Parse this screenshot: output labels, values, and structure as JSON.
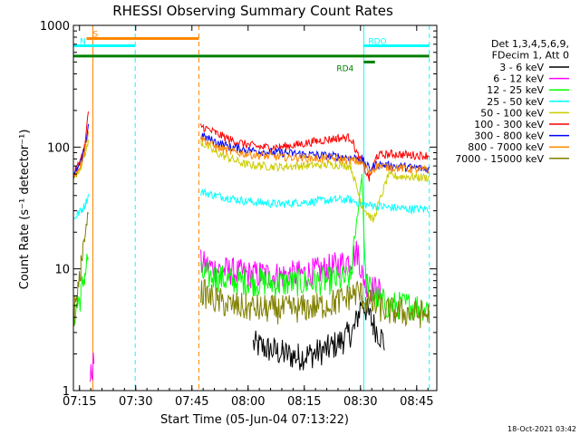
{
  "chart_data": {
    "type": "line",
    "title": "RHESSI Observing Summary Count Rates",
    "xlabel": "Start Time (05-Jun-04 07:13:22)",
    "ylabel": "Count Rate (s⁻¹ detector⁻¹)",
    "x_unit": "minutes after 07:13:22",
    "xlim": [
      0,
      97
    ],
    "ylim": [
      1,
      1000
    ],
    "y_scale": "log",
    "x_ticks": [
      {
        "value": 1.63,
        "label": "07:15"
      },
      {
        "value": 16.63,
        "label": "07:30"
      },
      {
        "value": 31.63,
        "label": "07:45"
      },
      {
        "value": 46.63,
        "label": "08:00"
      },
      {
        "value": 61.63,
        "label": "08:15"
      },
      {
        "value": 76.63,
        "label": "08:30"
      },
      {
        "value": 91.63,
        "label": "08:45"
      }
    ],
    "y_ticks": [
      {
        "value": 1,
        "label": "1"
      },
      {
        "value": 10,
        "label": "10"
      },
      {
        "value": 100,
        "label": "100"
      },
      {
        "value": 1000,
        "label": "1000"
      }
    ],
    "legend_header": [
      "Det 1,3,4,5,6,9,",
      "FDecim 1, Att 0"
    ],
    "legend_position": "right",
    "series": [
      {
        "name": "3 - 6 keV",
        "color": "#000000",
        "points": [
          [
            48,
            2.4
          ],
          [
            52,
            2.2
          ],
          [
            56,
            2.0
          ],
          [
            60,
            1.9
          ],
          [
            64,
            2.0
          ],
          [
            68,
            2.2
          ],
          [
            72,
            2.6
          ],
          [
            75,
            3.2
          ],
          [
            77,
            5.5
          ],
          [
            80,
            3.5
          ],
          [
            83,
            2.5
          ]
        ]
      },
      {
        "name": "6 - 12 keV",
        "color": "#ff00ff",
        "points": [
          [
            4.5,
            1.2
          ],
          [
            5.5,
            1.8
          ],
          [
            34,
            11
          ],
          [
            38,
            10
          ],
          [
            42,
            9.5
          ],
          [
            46,
            9
          ],
          [
            50,
            9
          ],
          [
            55,
            8.8
          ],
          [
            60,
            9
          ],
          [
            65,
            9.5
          ],
          [
            70,
            10.5
          ],
          [
            74,
            12
          ],
          [
            76,
            14
          ],
          [
            77,
            9
          ],
          [
            79,
            7
          ],
          [
            82,
            6.5
          ]
        ]
      },
      {
        "name": "12 - 25 keV",
        "color": "#00ff00",
        "points": [
          [
            0,
            4
          ],
          [
            1,
            5
          ],
          [
            2,
            6
          ],
          [
            3,
            9
          ],
          [
            4,
            13
          ],
          [
            34,
            9
          ],
          [
            38,
            8.5
          ],
          [
            42,
            8
          ],
          [
            48,
            7.8
          ],
          [
            55,
            7.6
          ],
          [
            62,
            7.7
          ],
          [
            68,
            8
          ],
          [
            74,
            8.3
          ],
          [
            77,
            60
          ],
          [
            78,
            8
          ],
          [
            80,
            6
          ],
          [
            84,
            5
          ],
          [
            90,
            5
          ],
          [
            95,
            4.8
          ]
        ]
      },
      {
        "name": "25 - 50 keV",
        "color": "#00ffff",
        "points": [
          [
            0,
            25
          ],
          [
            1,
            28
          ],
          [
            2,
            30
          ],
          [
            3,
            33
          ],
          [
            4,
            40
          ],
          [
            34,
            43
          ],
          [
            38,
            40
          ],
          [
            42,
            38
          ],
          [
            46,
            36
          ],
          [
            50,
            35
          ],
          [
            55,
            34
          ],
          [
            60,
            35
          ],
          [
            65,
            36
          ],
          [
            70,
            37
          ],
          [
            74,
            37
          ],
          [
            77,
            34
          ],
          [
            80,
            33
          ],
          [
            84,
            32
          ],
          [
            90,
            31
          ],
          [
            95,
            31
          ]
        ]
      },
      {
        "name": "50 - 100 keV",
        "color": "#cccc00",
        "points": [
          [
            0,
            55
          ],
          [
            1,
            62
          ],
          [
            2,
            70
          ],
          [
            3,
            85
          ],
          [
            4,
            110
          ],
          [
            34,
            110
          ],
          [
            38,
            90
          ],
          [
            42,
            80
          ],
          [
            46,
            72
          ],
          [
            50,
            70
          ],
          [
            55,
            69
          ],
          [
            60,
            70
          ],
          [
            65,
            71
          ],
          [
            70,
            72
          ],
          [
            74,
            70
          ],
          [
            77,
            33
          ],
          [
            80,
            25
          ],
          [
            84,
            58
          ],
          [
            90,
            57
          ],
          [
            95,
            56
          ]
        ]
      },
      {
        "name": "100 - 300 keV",
        "color": "#ff0000",
        "points": [
          [
            0,
            60
          ],
          [
            1,
            68
          ],
          [
            2,
            80
          ],
          [
            3,
            100
          ],
          [
            4,
            190
          ],
          [
            34,
            150
          ],
          [
            38,
            130
          ],
          [
            42,
            115
          ],
          [
            46,
            105
          ],
          [
            50,
            100
          ],
          [
            55,
            100
          ],
          [
            60,
            105
          ],
          [
            65,
            112
          ],
          [
            70,
            118
          ],
          [
            74,
            120
          ],
          [
            76,
            85
          ],
          [
            79,
            55
          ],
          [
            81,
            85
          ],
          [
            85,
            88
          ],
          [
            90,
            86
          ],
          [
            95,
            85
          ]
        ]
      },
      {
        "name": "300 - 800 keV",
        "color": "#0000ff",
        "points": [
          [
            0,
            58
          ],
          [
            1,
            64
          ],
          [
            2,
            75
          ],
          [
            3,
            95
          ],
          [
            4,
            150
          ],
          [
            34,
            125
          ],
          [
            38,
            110
          ],
          [
            42,
            100
          ],
          [
            46,
            95
          ],
          [
            50,
            92
          ],
          [
            55,
            90
          ],
          [
            60,
            88
          ],
          [
            65,
            86
          ],
          [
            70,
            84
          ],
          [
            74,
            82
          ],
          [
            77,
            80
          ],
          [
            79,
            66
          ],
          [
            81,
            72
          ],
          [
            85,
            70
          ],
          [
            90,
            68
          ],
          [
            95,
            66
          ]
        ]
      },
      {
        "name": "800 - 7000 keV",
        "color": "#ff8800",
        "points": [
          [
            0,
            57
          ],
          [
            1,
            63
          ],
          [
            2,
            74
          ],
          [
            3,
            92
          ],
          [
            4,
            140
          ],
          [
            34,
            120
          ],
          [
            38,
            100
          ],
          [
            42,
            92
          ],
          [
            46,
            88
          ],
          [
            50,
            85
          ],
          [
            55,
            83
          ],
          [
            60,
            82
          ],
          [
            65,
            81
          ],
          [
            70,
            80
          ],
          [
            74,
            78
          ],
          [
            77,
            75
          ],
          [
            79,
            62
          ],
          [
            81,
            70
          ],
          [
            85,
            68
          ],
          [
            90,
            66
          ],
          [
            95,
            64
          ]
        ]
      },
      {
        "name": "7000 - 15000 keV",
        "color": "#808000",
        "points": [
          [
            0,
            4
          ],
          [
            1,
            6
          ],
          [
            2,
            10
          ],
          [
            3,
            18
          ],
          [
            4,
            30
          ],
          [
            34,
            6.5
          ],
          [
            38,
            5.5
          ],
          [
            42,
            5
          ],
          [
            46,
            4.8
          ],
          [
            50,
            4.7
          ],
          [
            55,
            4.6
          ],
          [
            60,
            4.7
          ],
          [
            65,
            4.9
          ],
          [
            70,
            5.3
          ],
          [
            74,
            6
          ],
          [
            76,
            6.5
          ],
          [
            78,
            5.5
          ],
          [
            80,
            5
          ],
          [
            84,
            4.5
          ],
          [
            90,
            4.3
          ],
          [
            95,
            4.2
          ]
        ]
      }
    ],
    "state_bars": [
      {
        "label": "S",
        "color": "#ff8800",
        "start": 3.5,
        "end": 33.5,
        "level": 780
      },
      {
        "label": "N",
        "color": "#00ffff",
        "start": 0,
        "end": 16.5,
        "level": 680
      },
      {
        "label": "",
        "color": "#008000",
        "start": 0,
        "end": 95,
        "level": 560
      },
      {
        "label": "RD4",
        "color": "#008000",
        "start": 77.5,
        "end": 80.5,
        "level": 500
      },
      {
        "label": "RDO",
        "color": "#00ffff",
        "start": 77.5,
        "end": 95,
        "level": 680
      }
    ],
    "vertical_lines": [
      {
        "x": 0,
        "color": "#00ffff",
        "style": "solid"
      },
      {
        "x": 5.2,
        "color": "#ff8800",
        "style": "solid"
      },
      {
        "x": 16.5,
        "color": "#00ffff",
        "style": "dashed"
      },
      {
        "x": 33.5,
        "color": "#ff8800",
        "style": "dashed"
      },
      {
        "x": 77.5,
        "color": "#00ffff",
        "style": "solid"
      },
      {
        "x": 95,
        "color": "#00ffff",
        "style": "dashed"
      }
    ]
  },
  "footer": {
    "date": "18-Oct-2021 03:42"
  }
}
